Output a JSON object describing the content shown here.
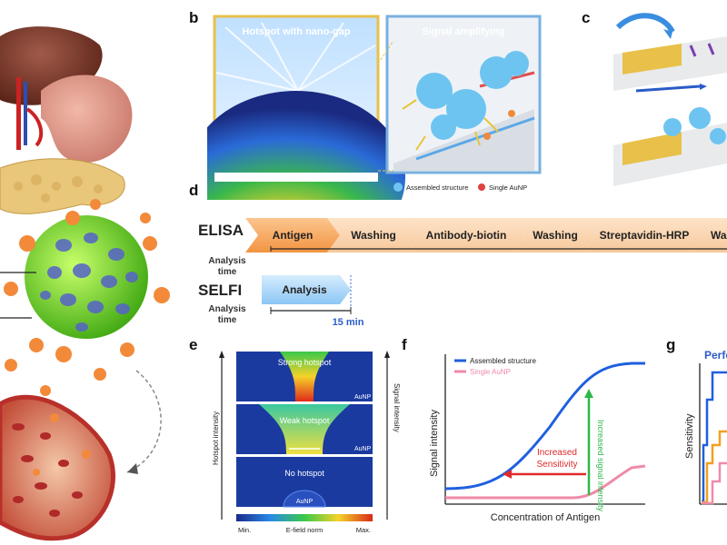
{
  "panels": {
    "b": "b",
    "c": "c",
    "d": "d",
    "e": "e",
    "f": "f",
    "g": "g"
  },
  "panel_b": {
    "left_title": "Hotspot with nano-gap",
    "right_title": "Signal amplifying",
    "legend_assembled": "Assembled structure",
    "legend_single": "Single AuNP"
  },
  "panel_d": {
    "elisa_label": "ELISA",
    "elisa_steps": [
      "Antigen",
      "Washing",
      "Antibody-biotin",
      "Washing",
      "Streptavidin-HRP",
      "Was"
    ],
    "analysis_time_1": "Analysis",
    "analysis_time_2": "time",
    "selfi_label": "SELFI",
    "selfi_step": "Analysis",
    "selfi_time": "15 min"
  },
  "panel_e": {
    "strong": "Strong hotspot",
    "weak": "Weak hotspot",
    "none": "No hotspot",
    "aunp": "AuNP",
    "left_axis": "Hotspot intensity",
    "right_axis": "Signal intensity",
    "cbar_min": "Min.",
    "cbar_mid": "E-field norm",
    "cbar_max": "Max."
  },
  "chart_data": {
    "type": "line",
    "ylabel": "Signal intensity",
    "xlabel": "Concentration of Antigen",
    "series": [
      {
        "name": "Assembled structure",
        "color": "#1f5fe0"
      },
      {
        "name": "Single AuNP",
        "color": "#f08aa8"
      }
    ],
    "annotations": {
      "increased_signal": "Increased signal intensity",
      "increased_sensitivity_1": "Increased",
      "increased_sensitivity_2": "Sensitivity"
    }
  },
  "panel_g": {
    "title": "Perfo",
    "ylabel": "Sensitivity"
  }
}
